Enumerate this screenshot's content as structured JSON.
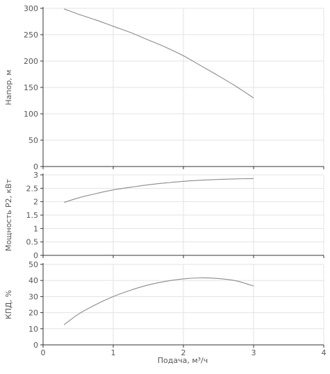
{
  "chart_data": [
    {
      "type": "line",
      "ylabel": "Напор, м",
      "xlim": [
        0,
        4
      ],
      "ylim": [
        0,
        300
      ],
      "y_ticks": [
        0,
        50,
        100,
        150,
        200,
        250,
        300
      ],
      "x_ticks": [
        0,
        1,
        2,
        3,
        4
      ],
      "grid": true,
      "series": [
        {
          "x": [
            0.3,
            0.5,
            0.75,
            1.0,
            1.25,
            1.5,
            1.75,
            2.0,
            2.25,
            2.5,
            2.75,
            3.0
          ],
          "y": [
            299,
            289,
            278,
            266,
            254,
            240,
            226,
            210,
            191,
            172,
            152,
            130
          ]
        }
      ]
    },
    {
      "type": "line",
      "ylabel": "Мощность P2, кВт",
      "xlim": [
        0,
        4
      ],
      "ylim": [
        0,
        3
      ],
      "y_ticks": [
        0,
        0.5,
        1,
        1.5,
        2,
        2.5,
        3
      ],
      "x_ticks": [
        0,
        1,
        2,
        3,
        4
      ],
      "grid": true,
      "series": [
        {
          "x": [
            0.3,
            0.5,
            0.75,
            1.0,
            1.25,
            1.5,
            1.75,
            2.0,
            2.25,
            2.5,
            2.75,
            3.0
          ],
          "y": [
            1.97,
            2.14,
            2.3,
            2.44,
            2.54,
            2.63,
            2.7,
            2.76,
            2.8,
            2.83,
            2.85,
            2.86
          ]
        }
      ]
    },
    {
      "type": "line",
      "ylabel": "КПД, %",
      "xlabel": "Подача, м³/ч",
      "xlim": [
        0,
        4
      ],
      "ylim": [
        0,
        50
      ],
      "y_ticks": [
        0,
        10,
        20,
        30,
        40,
        50
      ],
      "x_ticks": [
        0,
        1,
        2,
        3,
        4
      ],
      "grid": true,
      "series": [
        {
          "x": [
            0.3,
            0.5,
            0.75,
            1.0,
            1.25,
            1.5,
            1.75,
            2.0,
            2.25,
            2.5,
            2.75,
            3.0
          ],
          "y": [
            12.5,
            19,
            25,
            30,
            34,
            37.2,
            39.5,
            41,
            41.6,
            41.2,
            39.8,
            36.5
          ]
        }
      ]
    }
  ],
  "colors": {
    "series": "#8a8a8a",
    "grid": "#e3e3e3",
    "axis": "#333333",
    "text": "#555555"
  }
}
